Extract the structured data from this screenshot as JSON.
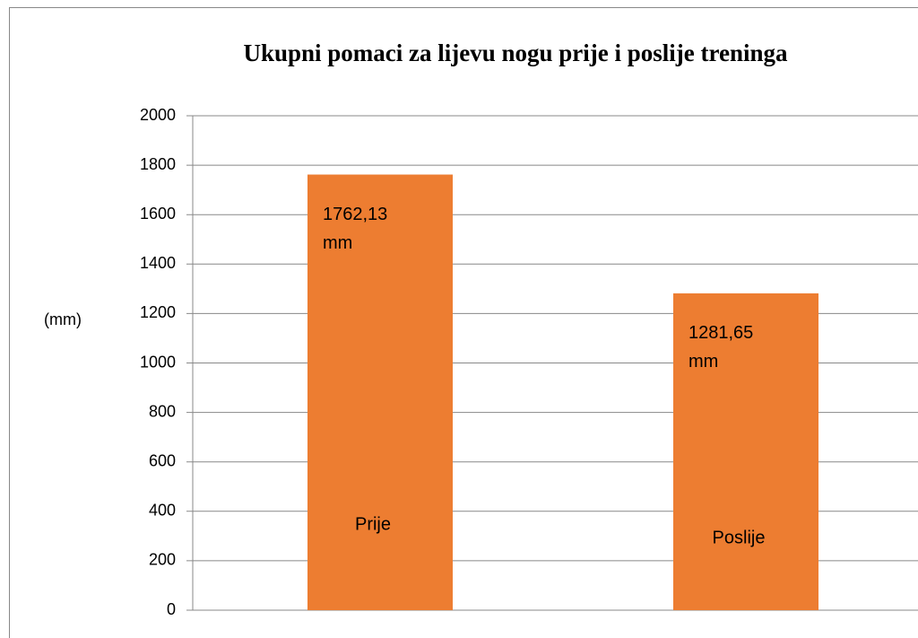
{
  "chart_data": {
    "type": "bar",
    "title": "Ukupni pomaci za lijevu nogu prije i poslije treninga",
    "y_label": "(mm)",
    "categories": [
      "Prije",
      "Poslije"
    ],
    "values": [
      1762.13,
      1281.65
    ],
    "value_labels": [
      "1762,13 mm",
      "1281,65 mm"
    ],
    "color": "#ed7d31",
    "ylim": [
      0,
      2000
    ],
    "yticks": [
      0,
      200,
      400,
      600,
      800,
      1000,
      1200,
      1400,
      1600,
      1800,
      2000
    ],
    "grid": true
  }
}
